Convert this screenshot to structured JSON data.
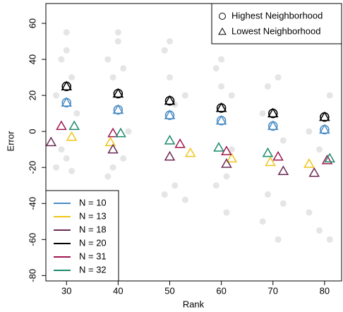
{
  "chart_data": {
    "type": "scatter",
    "x_label": "Rank",
    "y_label": "Error",
    "xlim": [
      26,
      83.3
    ],
    "ylim": [
      -83,
      71
    ],
    "xticks": [
      30,
      40,
      50,
      60,
      70,
      80
    ],
    "yticks": [
      -80,
      -60,
      -40,
      -20,
      0,
      20,
      40,
      60
    ],
    "marker_labels": [
      "Highest Neighborhood",
      "Lowest Neighborhood"
    ],
    "background": {
      "color": "#999999",
      "x": [
        28,
        28,
        29,
        29,
        30,
        30,
        30,
        31,
        31,
        32,
        38,
        38,
        39,
        39,
        40,
        40,
        41,
        41,
        42,
        49,
        49,
        50,
        50,
        51,
        51,
        53,
        53,
        59,
        59,
        60,
        60,
        61,
        61,
        62,
        62,
        68,
        68,
        69,
        69,
        71,
        71,
        72,
        72,
        77,
        77,
        79,
        79,
        81,
        81
      ],
      "values": [
        20,
        -20,
        40,
        -10,
        55,
        45,
        -15,
        30,
        -22,
        10,
        40,
        -25,
        30,
        -20,
        55,
        50,
        -15,
        35,
        0,
        45,
        -35,
        50,
        30,
        -30,
        15,
        20,
        -38,
        35,
        -30,
        40,
        25,
        -45,
        -25,
        20,
        -10,
        10,
        -50,
        25,
        -35,
        30,
        -60,
        -5,
        -40,
        0,
        -45,
        -10,
        -55,
        20,
        -60
      ]
    },
    "series": [
      {
        "name": "N = 10",
        "color": "#4a8cc4",
        "highest": {
          "x": [
            30,
            40,
            50,
            60,
            70,
            80
          ],
          "values": [
            16,
            12,
            9,
            6,
            3,
            1
          ]
        },
        "lowest": {
          "x": [
            30,
            40,
            50,
            60,
            70,
            80
          ],
          "values": [
            16,
            12,
            9,
            6,
            3,
            1
          ]
        }
      },
      {
        "name": "N = 13",
        "color": "#f0c419",
        "lowest": {
          "x": [
            31,
            38.5,
            54,
            62,
            69.5,
            77
          ],
          "values": [
            -3,
            -6,
            -12,
            -15,
            -17,
            -18
          ]
        }
      },
      {
        "name": "N = 18",
        "color": "#6b2a55",
        "lowest": {
          "x": [
            27,
            39,
            50,
            61,
            72,
            78
          ],
          "values": [
            -6,
            -10,
            -14,
            -18,
            -22,
            -23
          ]
        }
      },
      {
        "name": "N = 20",
        "color": "#000000",
        "highest": {
          "x": [
            30,
            40,
            50,
            60,
            70,
            80
          ],
          "values": [
            25,
            21,
            17,
            13,
            10,
            8
          ]
        },
        "lowest": {
          "x": [
            30,
            40,
            50,
            60,
            70,
            80
          ],
          "values": [
            25,
            21,
            17,
            13,
            10,
            8
          ]
        }
      },
      {
        "name": "N = 31",
        "color": "#a0174f",
        "lowest": {
          "x": [
            29,
            39,
            52,
            61,
            71,
            80.5
          ],
          "values": [
            3,
            -1,
            -7,
            -11,
            -14,
            -16
          ]
        }
      },
      {
        "name": "N = 32",
        "color": "#1a8a6a",
        "lowest": {
          "x": [
            31.5,
            40.5,
            50,
            59.5,
            69,
            81
          ],
          "values": [
            3,
            -1,
            -5,
            -9,
            -12,
            -15
          ]
        }
      }
    ]
  }
}
